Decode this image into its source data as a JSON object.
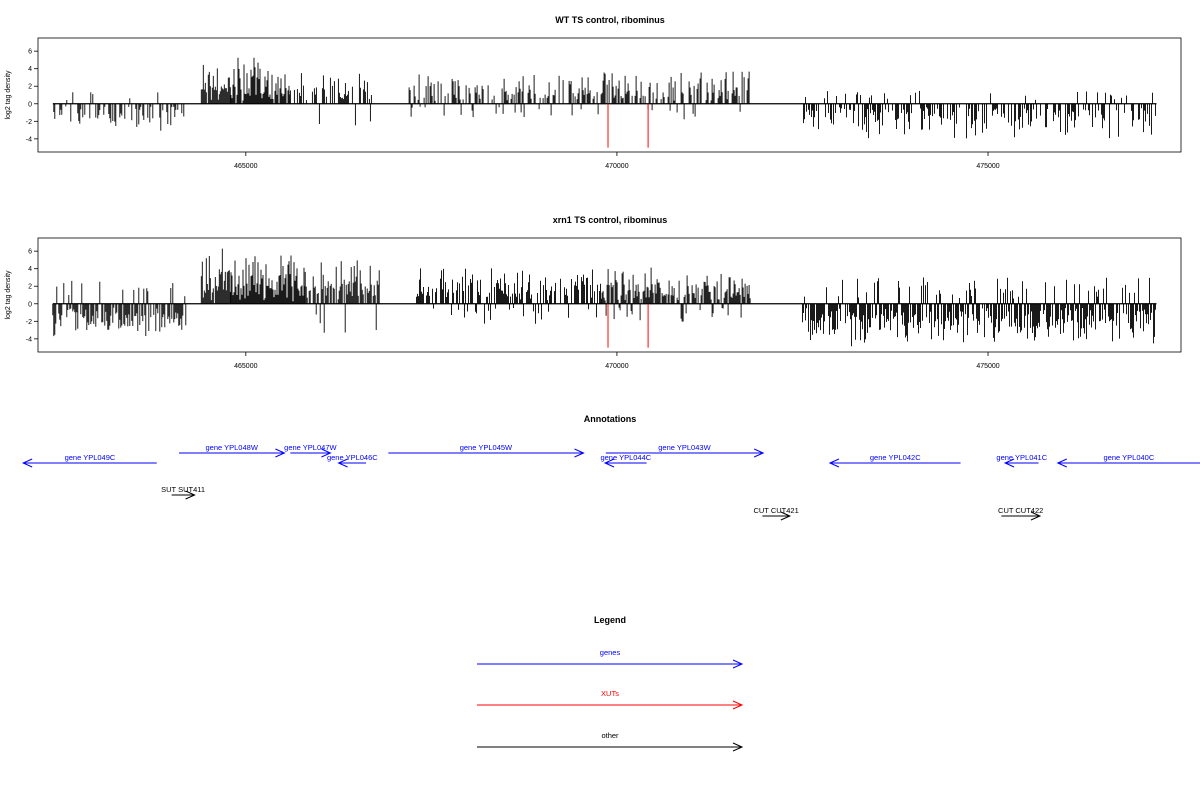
{
  "chart_data": [
    {
      "type": "bar",
      "title": "WT TS control, ribominus",
      "xlabel": "",
      "ylabel": "log2 tag density",
      "xlim": [
        462200,
        477600
      ],
      "ylim": [
        -5.5,
        7.5
      ],
      "x_ticks": [
        465000,
        470000,
        475000
      ],
      "x_tick_labels": [
        "465000",
        "470000",
        "475000"
      ],
      "y_ticks": [
        -4,
        -2,
        0,
        2,
        4,
        6
      ],
      "y_tick_labels": [
        "-4",
        "-2",
        "0",
        "2",
        "4",
        "6"
      ],
      "baseline_range": [
        462400,
        477270
      ],
      "segments": [
        {
          "start": 462400,
          "end": 464200,
          "lo": -3.1,
          "hi": 1.6,
          "sign": -1,
          "density": 0.45,
          "seed": 11
        },
        {
          "start": 464400,
          "end": 464800,
          "lo": 2.0,
          "hi": 6.6,
          "sign": 1,
          "density": 0.9,
          "seed": 12
        },
        {
          "start": 464800,
          "end": 465600,
          "lo": 1.6,
          "hi": 6.0,
          "sign": 1,
          "density": 0.95,
          "seed": 13
        },
        {
          "start": 465600,
          "end": 466700,
          "lo": -3.2,
          "hi": 3.6,
          "sign": 1,
          "density": 0.6,
          "seed": 14
        },
        {
          "start": 467200,
          "end": 469800,
          "lo": -1.6,
          "hi": 3.8,
          "sign": 1,
          "density": 0.55,
          "seed": 15
        },
        {
          "start": 469800,
          "end": 471800,
          "lo": -1.8,
          "hi": 4.2,
          "sign": 1,
          "density": 0.65,
          "seed": 16
        },
        {
          "start": 472500,
          "end": 477270,
          "lo": -4.2,
          "hi": 1.5,
          "sign": -1,
          "density": 0.55,
          "seed": 17
        }
      ],
      "markers": [
        {
          "x": 469880,
          "y_from": 0,
          "y_to": -5.0
        },
        {
          "x": 470420,
          "y_from": 0,
          "y_to": -5.0
        }
      ],
      "marker_color": "#ff0000"
    },
    {
      "type": "bar",
      "title": "xrn1 TS control, ribominus",
      "xlabel": "",
      "ylabel": "log2 tag density",
      "xlim": [
        462200,
        477600
      ],
      "ylim": [
        -5.5,
        7.5
      ],
      "x_ticks": [
        465000,
        470000,
        475000
      ],
      "x_tick_labels": [
        "465000",
        "470000",
        "475000"
      ],
      "y_ticks": [
        -4,
        -2,
        0,
        2,
        4,
        6
      ],
      "y_tick_labels": [
        "-4",
        "-2",
        "0",
        "2",
        "4",
        "6"
      ],
      "baseline_range": [
        462400,
        477270
      ],
      "segments": [
        {
          "start": 462400,
          "end": 464200,
          "lo": -4.2,
          "hi": 2.8,
          "sign": -1,
          "density": 0.8,
          "seed": 21
        },
        {
          "start": 464400,
          "end": 464800,
          "lo": 1.8,
          "hi": 7.0,
          "sign": 1,
          "density": 0.95,
          "seed": 22
        },
        {
          "start": 464800,
          "end": 465800,
          "lo": 1.4,
          "hi": 6.2,
          "sign": 1,
          "density": 0.98,
          "seed": 23
        },
        {
          "start": 465800,
          "end": 466800,
          "lo": -4.0,
          "hi": 5.2,
          "sign": 1,
          "density": 0.85,
          "seed": 24
        },
        {
          "start": 467300,
          "end": 469800,
          "lo": -2.4,
          "hi": 4.4,
          "sign": 1,
          "density": 0.7,
          "seed": 25
        },
        {
          "start": 469800,
          "end": 471800,
          "lo": -2.2,
          "hi": 4.2,
          "sign": 1,
          "density": 0.8,
          "seed": 26
        },
        {
          "start": 472500,
          "end": 477270,
          "lo": -5.0,
          "hi": 3.0,
          "sign": -1,
          "density": 0.85,
          "seed": 27
        }
      ],
      "markers": [
        {
          "x": 469880,
          "y_from": 0,
          "y_to": -5.0
        },
        {
          "x": 470420,
          "y_from": 0,
          "y_to": -5.0
        }
      ],
      "marker_color": "#ff0000"
    }
  ],
  "annotations": {
    "title": "Annotations",
    "genes_color": "#0000ff",
    "other_color": "#000000",
    "items": [
      {
        "label": "gene YPL049C",
        "x1": 463800,
        "x2": 462000,
        "row": 1,
        "kind": "gene"
      },
      {
        "label": "gene YPL048W",
        "x1": 464100,
        "x2": 465520,
        "row": 0,
        "kind": "gene"
      },
      {
        "label": "gene YPL047W",
        "x1": 465600,
        "x2": 466140,
        "row": 0,
        "kind": "gene"
      },
      {
        "label": "gene YPL046C",
        "x1": 466620,
        "x2": 466250,
        "row": 1,
        "kind": "gene"
      },
      {
        "label": "gene YPL045W",
        "x1": 466920,
        "x2": 469550,
        "row": 0,
        "kind": "gene"
      },
      {
        "label": "gene YPL044C",
        "x1": 470400,
        "x2": 469840,
        "row": 1,
        "kind": "gene"
      },
      {
        "label": "gene YPL043W",
        "x1": 469850,
        "x2": 471970,
        "row": 0,
        "kind": "gene"
      },
      {
        "label": "gene YPL042C",
        "x1": 474630,
        "x2": 472870,
        "row": 1,
        "kind": "gene"
      },
      {
        "label": "gene YPL041C",
        "x1": 475680,
        "x2": 475230,
        "row": 1,
        "kind": "gene"
      },
      {
        "label": "gene YPL040C",
        "x1": 478000,
        "x2": 475940,
        "row": 1,
        "kind": "gene"
      },
      {
        "label": "SUT SUT411",
        "x1": 464000,
        "x2": 464310,
        "row": 2,
        "kind": "other"
      },
      {
        "label": "CUT CUT421",
        "x1": 471960,
        "x2": 472330,
        "row": 3,
        "kind": "other"
      },
      {
        "label": "CUT CUT422",
        "x1": 475180,
        "x2": 475700,
        "row": 3,
        "kind": "other"
      }
    ]
  },
  "legend": {
    "title": "Legend",
    "items": [
      {
        "label": "genes",
        "color": "#0000ff"
      },
      {
        "label": "XUTs",
        "color": "#ff0000"
      },
      {
        "label": "other",
        "color": "#000000"
      }
    ]
  }
}
